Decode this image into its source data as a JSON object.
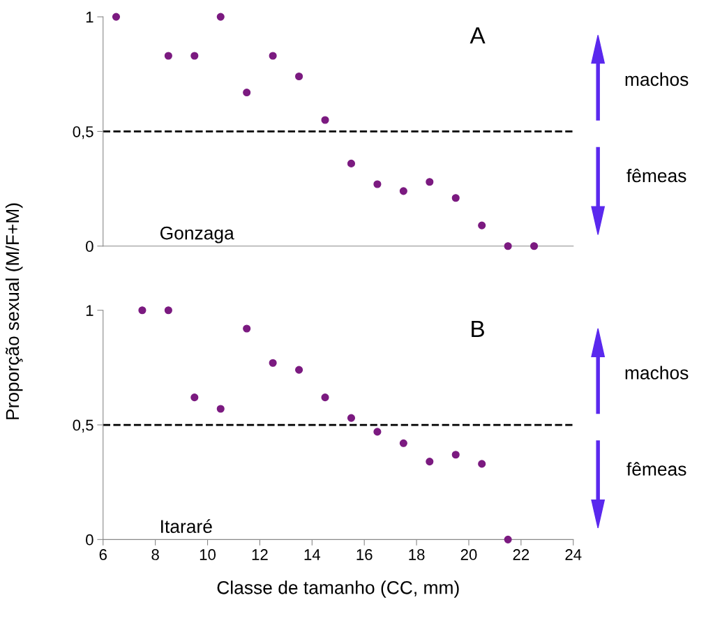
{
  "chart_data": [
    {
      "type": "scatter",
      "ylabel": "Proporção sexual (M/F+M)",
      "xlim": [
        6,
        24
      ],
      "ylim": [
        0,
        1
      ],
      "yticks": [
        0,
        {
          "value": 0.5,
          "label": "0,5"
        },
        1
      ],
      "tick_labels": "y",
      "grid": false,
      "marker": "circle",
      "series": [
        {
          "color": "#7b1a80",
          "x": [
            6.5,
            8.5,
            9.5,
            10.5,
            11.5,
            12.5,
            13.5,
            14.5,
            15.5,
            16.5,
            17.5,
            18.5,
            19.5,
            20.5,
            21.5,
            22.5
          ],
          "values": [
            1,
            0.83,
            0.83,
            1,
            0.67,
            0.83,
            0.74,
            0.55,
            0.36,
            0.27,
            0.24,
            0.28,
            0.21,
            0.09,
            0,
            0
          ]
        }
      ],
      "ref_lines": [
        {
          "axis": "y",
          "value": 0.5,
          "label": null,
          "color": "#000000",
          "line_style": "dashed"
        }
      ],
      "annotations": [
        "A",
        "Gonzaga",
        "machos",
        "fêmeas"
      ]
    },
    {
      "type": "scatter",
      "xlabel": "Classe de tamanho (CC, mm)",
      "xlim": [
        6,
        24
      ],
      "xticks": [
        6,
        8,
        10,
        12,
        14,
        16,
        18,
        20,
        22,
        24
      ],
      "ylim": [
        0,
        1
      ],
      "yticks": [
        0,
        {
          "value": 0.5,
          "label": "0,5"
        },
        1
      ],
      "grid": false,
      "marker": "circle",
      "series": [
        {
          "color": "#7b1a80",
          "x": [
            7.5,
            8.5,
            9.5,
            10.5,
            11.5,
            12.5,
            13.5,
            14.5,
            15.5,
            16.5,
            17.5,
            18.5,
            19.5,
            20.5,
            21.5
          ],
          "values": [
            1,
            1,
            0.62,
            0.57,
            0.92,
            0.77,
            0.74,
            0.62,
            0.53,
            0.47,
            0.42,
            0.34,
            0.37,
            0.33,
            0
          ]
        }
      ],
      "ref_lines": [
        {
          "axis": "y",
          "value": 0.5,
          "label": null,
          "color": "#000000",
          "line_style": "dashed"
        }
      ],
      "annotations": [
        "B",
        "Itararé",
        "machos",
        "fêmeas"
      ]
    }
  ]
}
